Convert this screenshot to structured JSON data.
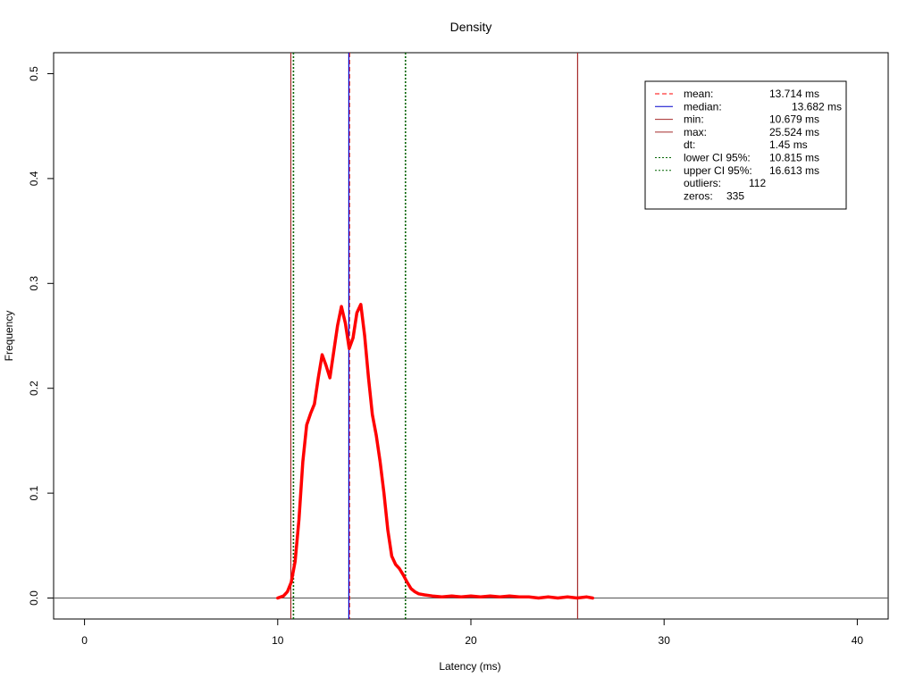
{
  "chart_data": {
    "type": "line",
    "title": "Density",
    "xlabel": "Latency (ms)",
    "ylabel": "Frequency",
    "xlim": [
      -1.6,
      41.6
    ],
    "ylim": [
      -0.02,
      0.52
    ],
    "x_ticks": [
      0,
      10,
      20,
      30,
      40
    ],
    "y_ticks": [
      0.0,
      0.1,
      0.2,
      0.3,
      0.4,
      0.5
    ],
    "x_tick_labels": [
      "0",
      "10",
      "20",
      "30",
      "40"
    ],
    "y_tick_labels": [
      "0.0",
      "0.1",
      "0.2",
      "0.3",
      "0.4",
      "0.5"
    ],
    "grid": false,
    "legend_position": "top-right",
    "baseline_y": 0,
    "series": [
      {
        "color": "#ff0000",
        "x": [
          10.0,
          10.3,
          10.5,
          10.7,
          10.9,
          11.1,
          11.3,
          11.5,
          11.7,
          11.9,
          12.1,
          12.3,
          12.5,
          12.7,
          12.9,
          13.1,
          13.3,
          13.5,
          13.7,
          13.9,
          14.1,
          14.3,
          14.5,
          14.7,
          14.9,
          15.1,
          15.3,
          15.5,
          15.7,
          15.9,
          16.1,
          16.3,
          16.5,
          16.7,
          16.9,
          17.1,
          17.3,
          17.6,
          18.0,
          18.5,
          19.0,
          19.5,
          20.0,
          20.5,
          21.0,
          21.5,
          22.0,
          22.5,
          23.0,
          23.5,
          24.0,
          24.5,
          25.0,
          25.5,
          26.0,
          26.3
        ],
        "y": [
          0.0,
          0.002,
          0.006,
          0.015,
          0.035,
          0.075,
          0.13,
          0.165,
          0.176,
          0.185,
          0.21,
          0.232,
          0.222,
          0.21,
          0.235,
          0.26,
          0.278,
          0.262,
          0.238,
          0.248,
          0.272,
          0.28,
          0.25,
          0.21,
          0.175,
          0.155,
          0.13,
          0.1,
          0.065,
          0.04,
          0.032,
          0.028,
          0.022,
          0.015,
          0.009,
          0.006,
          0.004,
          0.003,
          0.002,
          0.001,
          0.002,
          0.001,
          0.002,
          0.001,
          0.002,
          0.001,
          0.002,
          0.001,
          0.001,
          0.0,
          0.001,
          0.0,
          0.001,
          0.0,
          0.001,
          0.0
        ]
      }
    ],
    "vertical_lines": [
      {
        "key": "mean",
        "x": 13.714,
        "color": "#ff0000",
        "dash": "dashed"
      },
      {
        "key": "median",
        "x": 13.682,
        "color": "#0000cc",
        "dash": "solid"
      },
      {
        "key": "min",
        "x": 10.679,
        "color": "#a52a2a",
        "dash": "solid"
      },
      {
        "key": "max",
        "x": 25.524,
        "color": "#a52a2a",
        "dash": "solid"
      },
      {
        "key": "lower",
        "x": 10.815,
        "color": "#006400",
        "dash": "dotted"
      },
      {
        "key": "upper",
        "x": 16.613,
        "color": "#006400",
        "dash": "dotted"
      }
    ],
    "legend": [
      {
        "label": "mean:",
        "value": "13.714 ms",
        "color": "#ff0000",
        "dash": "dashed"
      },
      {
        "label": "median:",
        "value": "13.682 ms",
        "color": "#0000cc",
        "dash": "solid"
      },
      {
        "label": "min:",
        "value": "10.679 ms",
        "color": "#a52a2a",
        "dash": "solid"
      },
      {
        "label": "max:",
        "value": "25.524 ms",
        "color": "#a52a2a",
        "dash": "solid"
      },
      {
        "label": "dt:",
        "value": "1.45 ms",
        "color": "",
        "dash": "none"
      },
      {
        "label": "lower CI 95%:",
        "value": "10.815 ms",
        "color": "#006400",
        "dash": "dotted"
      },
      {
        "label": "upper CI 95%:",
        "value": "16.613 ms",
        "color": "#006400",
        "dash": "dotted"
      },
      {
        "label": "outliers:",
        "value": "112",
        "color": "",
        "dash": "none"
      },
      {
        "label": "zeros:",
        "value": "335",
        "color": "",
        "dash": "none"
      }
    ]
  }
}
